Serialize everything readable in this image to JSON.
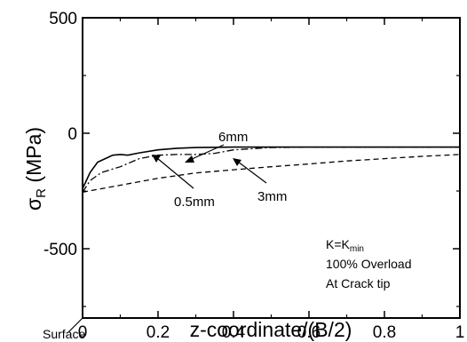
{
  "chart_data": {
    "type": "line",
    "xlabel": "z-coordinate/(B/2)",
    "ylabel_main": "σ",
    "ylabel_sub": "R",
    "ylabel_unit": " (MPa)",
    "xlim": [
      0,
      1
    ],
    "ylim": [
      -800,
      500
    ],
    "xticks": [
      0,
      0.2,
      0.4,
      0.6,
      0.8,
      1
    ],
    "xtick_labels": [
      "0",
      "0.2",
      "0.4",
      "0.6",
      "0.8",
      "1"
    ],
    "yticks": [
      500,
      0,
      -500
    ],
    "ytick_labels": [
      "500",
      "0",
      "-500"
    ],
    "grid": false,
    "series": [
      {
        "name": "6mm",
        "style": "solid",
        "x": [
          0,
          0.02,
          0.04,
          0.06,
          0.08,
          0.1,
          0.12,
          0.15,
          0.2,
          0.25,
          0.3,
          0.4,
          0.5,
          0.6,
          0.8,
          1.0
        ],
        "y": [
          -240,
          -170,
          -125,
          -110,
          -95,
          -92,
          -95,
          -85,
          -72,
          -65,
          -62,
          -60,
          -60,
          -60,
          -60,
          -60
        ]
      },
      {
        "name": "3mm",
        "style": "dashdot",
        "x": [
          0,
          0.02,
          0.05,
          0.1,
          0.15,
          0.2,
          0.25,
          0.3,
          0.35,
          0.4,
          0.5,
          0.6,
          0.8,
          1.0
        ],
        "y": [
          -255,
          -205,
          -170,
          -145,
          -110,
          -95,
          -92,
          -92,
          -87,
          -72,
          -62,
          -60,
          -60,
          -60
        ]
      },
      {
        "name": "0.5mm",
        "style": "dashed",
        "x": [
          0,
          0.05,
          0.1,
          0.15,
          0.2,
          0.3,
          0.4,
          0.5,
          0.6,
          0.7,
          0.8,
          0.9,
          1.0
        ],
        "y": [
          -255,
          -240,
          -225,
          -210,
          -195,
          -172,
          -158,
          -145,
          -133,
          -120,
          -110,
          -100,
          -92
        ]
      }
    ],
    "annotations": [
      {
        "text": "6mm",
        "target_series": "6mm"
      },
      {
        "text": "3mm",
        "target_series": "3mm"
      },
      {
        "text": "0.5mm",
        "target_series": "0.5mm"
      }
    ],
    "note_lines": [
      "K=K",
      "min",
      "100% Overload",
      "At Crack tip"
    ],
    "surface_label": "Surface"
  }
}
